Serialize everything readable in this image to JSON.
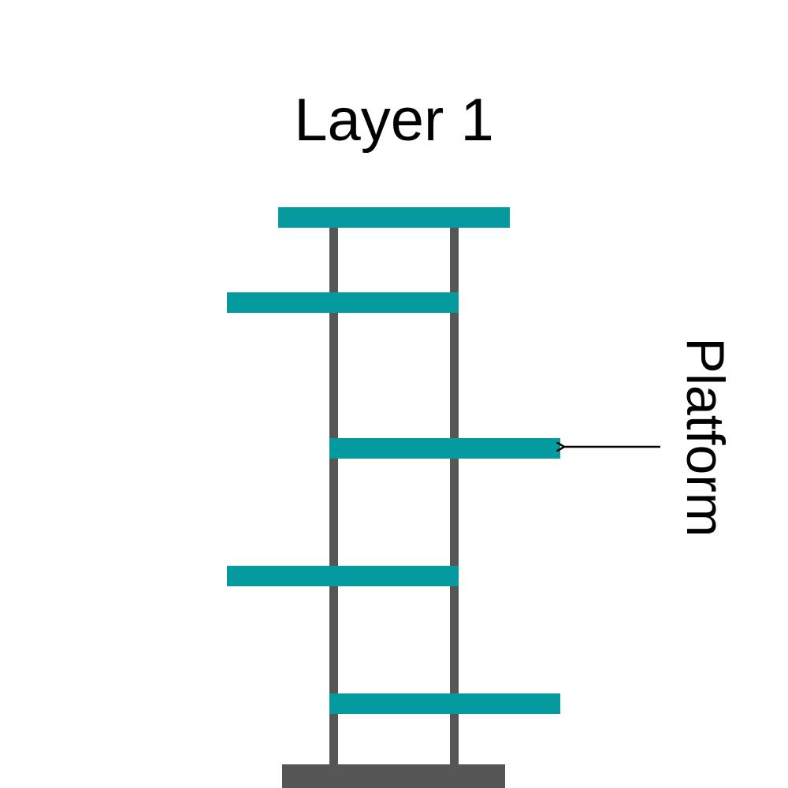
{
  "diagram": {
    "title": "Layer 1",
    "annotation_label": "Platform",
    "colors": {
      "platform": "#049a9e",
      "structure": "#565656",
      "arrow": "#000000",
      "background": "#ffffff"
    },
    "platform_count": 5
  }
}
